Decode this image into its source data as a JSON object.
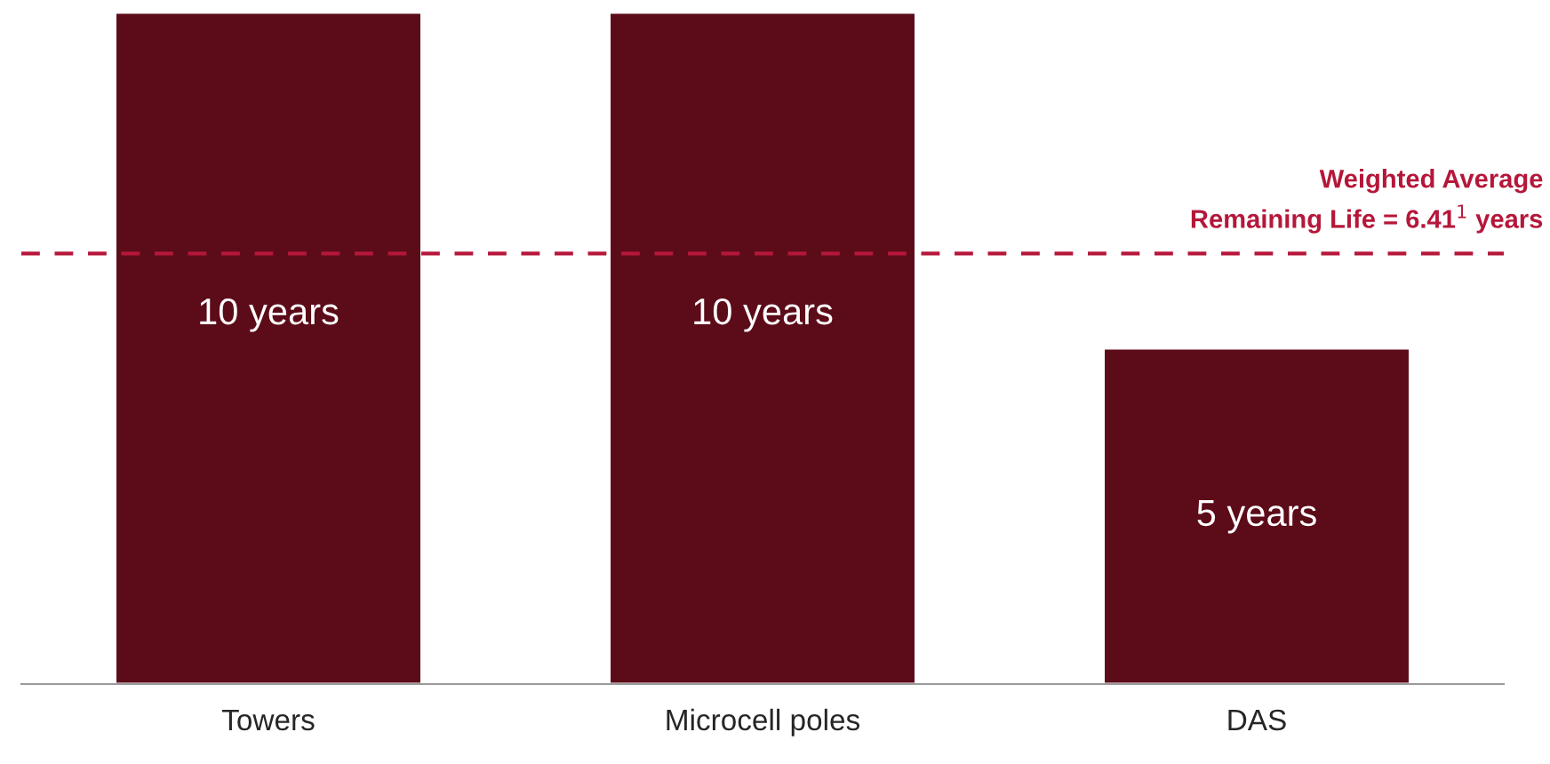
{
  "chart_data": {
    "type": "bar",
    "categories": [
      "Towers",
      "Microcell poles",
      "DAS"
    ],
    "values": [
      10,
      10,
      5
    ],
    "value_labels": [
      "10 years",
      "10 years",
      "5 years"
    ],
    "color": "#5c0b19",
    "ref_lines": [
      {
        "axis": "y",
        "value": 6.41,
        "label": "Weighted Average\nRemaining Life = 6.41$^{1}$ years",
        "color": "#b5173a",
        "line_style": "dashed"
      }
    ],
    "grid": false,
    "legend": false
  }
}
